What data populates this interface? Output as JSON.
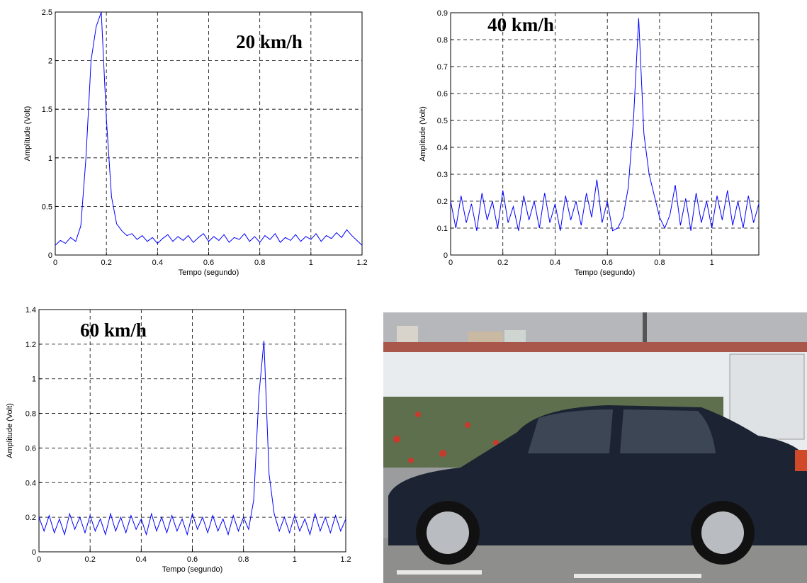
{
  "chart_data": [
    {
      "type": "line",
      "annotation": "20 km/h",
      "xlabel": "Tempo (segundo)",
      "ylabel": "Amplitude (Volt)",
      "x": [
        0,
        0.02,
        0.04,
        0.06,
        0.08,
        0.1,
        0.12,
        0.14,
        0.16,
        0.18,
        0.2,
        0.22,
        0.24,
        0.26,
        0.28,
        0.3,
        0.32,
        0.34,
        0.36,
        0.38,
        0.4,
        0.42,
        0.44,
        0.46,
        0.48,
        0.5,
        0.52,
        0.54,
        0.56,
        0.58,
        0.6,
        0.62,
        0.64,
        0.66,
        0.68,
        0.7,
        0.72,
        0.74,
        0.76,
        0.78,
        0.8,
        0.82,
        0.84,
        0.86,
        0.88,
        0.9,
        0.92,
        0.94,
        0.96,
        0.98,
        1,
        1.02,
        1.04,
        1.06,
        1.08,
        1.1,
        1.12,
        1.14,
        1.16,
        1.18,
        1.2
      ],
      "series": [
        {
          "color": "#0000ff",
          "values": [
            0.1,
            0.15,
            0.12,
            0.18,
            0.14,
            0.3,
            1.0,
            2.0,
            2.35,
            2.5,
            1.4,
            0.6,
            0.32,
            0.25,
            0.2,
            0.22,
            0.16,
            0.2,
            0.14,
            0.18,
            0.12,
            0.17,
            0.21,
            0.14,
            0.19,
            0.15,
            0.2,
            0.13,
            0.18,
            0.22,
            0.14,
            0.19,
            0.15,
            0.21,
            0.13,
            0.18,
            0.16,
            0.22,
            0.14,
            0.19,
            0.13,
            0.2,
            0.16,
            0.22,
            0.13,
            0.18,
            0.15,
            0.21,
            0.14,
            0.19,
            0.16,
            0.22,
            0.14,
            0.2,
            0.17,
            0.23,
            0.18,
            0.26,
            0.2,
            0.15,
            0.1
          ]
        }
      ],
      "xlim": [
        0,
        1.2
      ],
      "xticks": [
        0,
        0.2,
        0.4,
        0.6,
        0.8,
        1,
        1.2
      ],
      "ylim": [
        0,
        2.5
      ],
      "yticks": [
        0,
        0.5,
        1,
        1.5,
        2,
        2.5
      ],
      "grid": true
    },
    {
      "type": "line",
      "annotation": "40 km/h",
      "xlabel": "Tempo (segundo)",
      "ylabel": "Amplitude (Volt)",
      "x": [
        0,
        0.02,
        0.04,
        0.06,
        0.08,
        0.1,
        0.12,
        0.14,
        0.16,
        0.18,
        0.2,
        0.22,
        0.24,
        0.26,
        0.28,
        0.3,
        0.32,
        0.34,
        0.36,
        0.38,
        0.4,
        0.42,
        0.44,
        0.46,
        0.48,
        0.5,
        0.52,
        0.54,
        0.56,
        0.58,
        0.6,
        0.62,
        0.64,
        0.66,
        0.68,
        0.7,
        0.72,
        0.74,
        0.76,
        0.78,
        0.8,
        0.82,
        0.84,
        0.86,
        0.88,
        0.9,
        0.92,
        0.94,
        0.96,
        0.98,
        1,
        1.02,
        1.04,
        1.06,
        1.08,
        1.1,
        1.12,
        1.14,
        1.16,
        1.18
      ],
      "series": [
        {
          "color": "#0000ff",
          "values": [
            0.2,
            0.1,
            0.22,
            0.12,
            0.19,
            0.09,
            0.23,
            0.13,
            0.2,
            0.1,
            0.24,
            0.12,
            0.18,
            0.09,
            0.22,
            0.13,
            0.2,
            0.1,
            0.23,
            0.12,
            0.19,
            0.09,
            0.22,
            0.13,
            0.2,
            0.11,
            0.23,
            0.14,
            0.28,
            0.12,
            0.2,
            0.09,
            0.1,
            0.14,
            0.25,
            0.5,
            0.88,
            0.45,
            0.3,
            0.22,
            0.14,
            0.1,
            0.15,
            0.26,
            0.11,
            0.21,
            0.09,
            0.23,
            0.12,
            0.2,
            0.1,
            0.22,
            0.13,
            0.24,
            0.11,
            0.2,
            0.1,
            0.22,
            0.12,
            0.19
          ]
        }
      ],
      "xlim": [
        0,
        1.18
      ],
      "xticks": [
        0,
        0.2,
        0.4,
        0.6,
        0.8,
        1
      ],
      "ylim": [
        0,
        0.9
      ],
      "yticks": [
        0,
        0.1,
        0.2,
        0.3,
        0.4,
        0.5,
        0.6,
        0.7,
        0.8,
        0.9
      ],
      "grid": true
    },
    {
      "type": "line",
      "annotation": "60 km/h",
      "xlabel": "Tempo (segundo)",
      "ylabel": "Amplitude (Volt)",
      "x": [
        0,
        0.02,
        0.04,
        0.06,
        0.08,
        0.1,
        0.12,
        0.14,
        0.16,
        0.18,
        0.2,
        0.22,
        0.24,
        0.26,
        0.28,
        0.3,
        0.32,
        0.34,
        0.36,
        0.38,
        0.4,
        0.42,
        0.44,
        0.46,
        0.48,
        0.5,
        0.52,
        0.54,
        0.56,
        0.58,
        0.6,
        0.62,
        0.64,
        0.66,
        0.68,
        0.7,
        0.72,
        0.74,
        0.76,
        0.78,
        0.8,
        0.82,
        0.84,
        0.86,
        0.88,
        0.9,
        0.92,
        0.94,
        0.96,
        0.98,
        1,
        1.02,
        1.04,
        1.06,
        1.08,
        1.1,
        1.12,
        1.14,
        1.16,
        1.18,
        1.2
      ],
      "series": [
        {
          "color": "#0000ff",
          "values": [
            0.2,
            0.12,
            0.21,
            0.11,
            0.19,
            0.1,
            0.22,
            0.13,
            0.2,
            0.11,
            0.21,
            0.12,
            0.19,
            0.1,
            0.22,
            0.12,
            0.2,
            0.11,
            0.21,
            0.13,
            0.19,
            0.1,
            0.22,
            0.12,
            0.2,
            0.11,
            0.21,
            0.12,
            0.19,
            0.1,
            0.22,
            0.13,
            0.2,
            0.11,
            0.21,
            0.12,
            0.19,
            0.1,
            0.21,
            0.12,
            0.2,
            0.13,
            0.3,
            0.9,
            1.22,
            0.45,
            0.22,
            0.12,
            0.2,
            0.11,
            0.21,
            0.12,
            0.19,
            0.1,
            0.22,
            0.12,
            0.2,
            0.11,
            0.21,
            0.12,
            0.19
          ]
        }
      ],
      "xlim": [
        0,
        1.2
      ],
      "xticks": [
        0,
        0.2,
        0.4,
        0.6,
        0.8,
        1,
        1.2
      ],
      "ylim": [
        0,
        1.4
      ],
      "yticks": [
        0,
        0.2,
        0.4,
        0.6,
        0.8,
        1,
        1.2,
        1.4
      ],
      "grid": true
    }
  ]
}
